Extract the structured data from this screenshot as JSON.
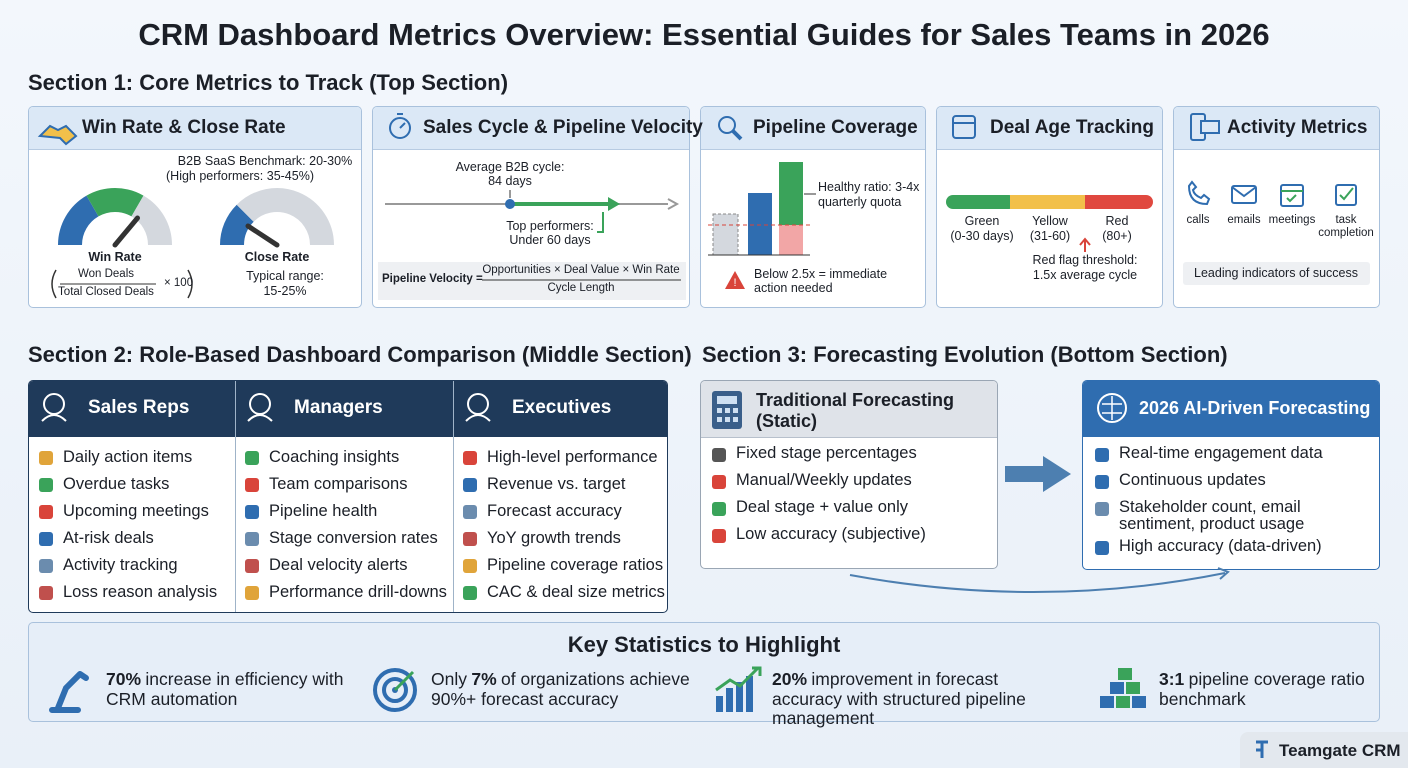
{
  "title": "CRM Dashboard Metrics Overview: Essential Guides for Sales Teams in 2026",
  "section1": {
    "heading": "Section 1: Core Metrics to Track (Top Section)",
    "cards": [
      {
        "title": "Win Rate & Close Rate",
        "benchmark": "B2B SaaS Benchmark: 20-30%",
        "benchmark_note": "(High performers: 35-45%)",
        "win_rate_label": "Win Rate",
        "close_rate_label": "Close Rate",
        "formula": {
          "numerator": "Won Deals",
          "denominator": "Total Closed Deals",
          "multiplier": "× 100"
        },
        "range_label": "Typical range:",
        "range": "15-25%"
      },
      {
        "title": "Sales Cycle & Pipeline Velocity",
        "average_label": "Average B2B cycle:",
        "average": "84 days",
        "top_label": "Top performers:",
        "top": "Under 60 days",
        "formula": {
          "label": "Pipeline Velocity =",
          "numerator": "Opportunities × Deal Value × Win Rate",
          "denominator": "Cycle Length"
        }
      },
      {
        "title": "Pipeline Coverage",
        "healthy": "Healthy ratio: 3-4x",
        "healthy_note": "quarterly quota",
        "warning": "Below 2.5x = immediate action needed"
      },
      {
        "title": "Deal Age Tracking",
        "stages": [
          {
            "name": "Green",
            "range": "(0-30 days)"
          },
          {
            "name": "Yellow",
            "range": "(31-60)"
          },
          {
            "name": "Red",
            "range": "(80+)"
          }
        ],
        "threshold_label": "Red flag threshold:",
        "threshold": "1.5x average cycle"
      },
      {
        "title": "Activity Metrics",
        "channels": [
          "calls",
          "emails",
          "meetings",
          "task completion"
        ],
        "footer": "Leading indicators of success"
      }
    ]
  },
  "section2": {
    "heading": "Section 2: Role-Based Dashboard Comparison (Middle Section)",
    "columns": [
      {
        "title": "Sales Reps",
        "items": [
          "Daily action items",
          "Overdue tasks",
          "Upcoming meetings",
          "At-risk deals",
          "Activity tracking",
          "Loss reason analysis"
        ]
      },
      {
        "title": "Managers",
        "items": [
          "Coaching insights",
          "Team comparisons",
          "Pipeline health",
          "Stage conversion rates",
          "Deal velocity alerts",
          "Performance drill-downs"
        ]
      },
      {
        "title": "Executives",
        "items": [
          "High-level performance",
          "Revenue vs. target",
          "Forecast accuracy",
          "YoY growth trends",
          "Pipeline coverage ratios",
          "CAC & deal size metrics"
        ]
      }
    ]
  },
  "section3": {
    "heading": "Section 3: Forecasting Evolution (Bottom Section)",
    "traditional": {
      "title": "Traditional Forecasting (Static)",
      "items": [
        "Fixed stage percentages",
        "Manual/Weekly updates",
        "Deal stage + value only",
        "Low accuracy (subjective)"
      ]
    },
    "ai": {
      "title": "2026 AI-Driven Forecasting",
      "items": [
        "Real-time engagement data",
        "Continuous updates",
        "Stakeholder count, email sentiment, product usage",
        "High accuracy (data-driven)"
      ]
    }
  },
  "key_statistics": {
    "heading": "Key Statistics to Highlight",
    "items": [
      {
        "highlight": "70%",
        "text": "increase in efficiency with CRM automation"
      },
      {
        "prefix": "Only",
        "highlight": "7%",
        "text": "of organizations achieve 90%+ forecast accuracy"
      },
      {
        "highlight": "20%",
        "text": "improvement in forecast accuracy with structured pipeline management"
      },
      {
        "highlight": "3:1",
        "text": "pipeline coverage ratio benchmark"
      }
    ]
  },
  "brand": "Teamgate CRM"
}
